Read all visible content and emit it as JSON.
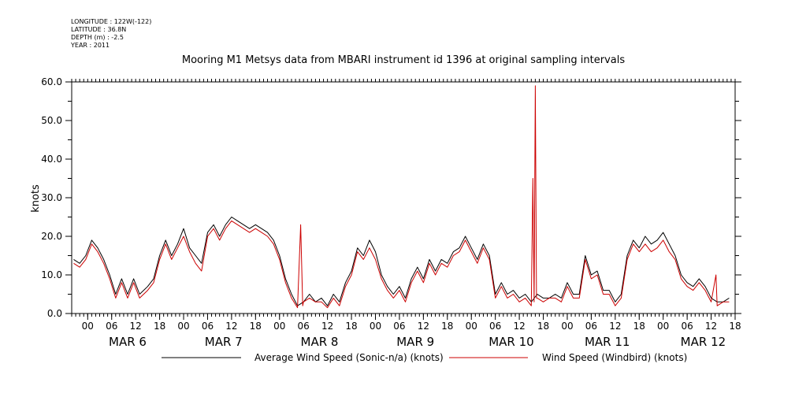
{
  "header": {
    "longitude": "LONGITUDE : 122W(-122)",
    "latitude": "LATITUDE : 36.8N",
    "depth": "DEPTH (m) : -2.5",
    "year": "YEAR : 2011"
  },
  "chart_data": {
    "type": "line",
    "title": "Mooring M1 Metsys data from MBARI instrument id 1396 at original sampling intervals",
    "ylabel": "knots",
    "ylim": [
      0,
      60
    ],
    "yticks": [
      0,
      10,
      20,
      30,
      40,
      50,
      60
    ],
    "xlim_hours": [
      -6,
      160
    ],
    "x_unit": "hours from 2011-03-06 00:00",
    "hour_ticks": [
      {
        "h": -2,
        "label": "00"
      },
      {
        "h": 4,
        "label": "06"
      },
      {
        "h": 10,
        "label": "12"
      },
      {
        "h": 16,
        "label": "18"
      },
      {
        "h": 22,
        "label": "00"
      },
      {
        "h": 28,
        "label": "06"
      },
      {
        "h": 34,
        "label": "12"
      },
      {
        "h": 40,
        "label": "18"
      },
      {
        "h": 46,
        "label": "00"
      },
      {
        "h": 52,
        "label": "06"
      },
      {
        "h": 58,
        "label": "12"
      },
      {
        "h": 64,
        "label": "18"
      },
      {
        "h": 70,
        "label": "00"
      },
      {
        "h": 76,
        "label": "06"
      },
      {
        "h": 82,
        "label": "12"
      },
      {
        "h": 88,
        "label": "18"
      },
      {
        "h": 94,
        "label": "00"
      },
      {
        "h": 100,
        "label": "06"
      },
      {
        "h": 106,
        "label": "12"
      },
      {
        "h": 112,
        "label": "18"
      },
      {
        "h": 118,
        "label": "00"
      },
      {
        "h": 124,
        "label": "06"
      },
      {
        "h": 130,
        "label": "12"
      },
      {
        "h": 136,
        "label": "18"
      },
      {
        "h": 142,
        "label": "00"
      },
      {
        "h": 148,
        "label": "06"
      },
      {
        "h": 154,
        "label": "12"
      },
      {
        "h": 160,
        "label": "18"
      }
    ],
    "day_labels": [
      {
        "h": 8,
        "label": "MAR  6"
      },
      {
        "h": 32,
        "label": "MAR  7"
      },
      {
        "h": 56,
        "label": "MAR  8"
      },
      {
        "h": 80,
        "label": "MAR  9"
      },
      {
        "h": 104,
        "label": "MAR 10"
      },
      {
        "h": 128,
        "label": "MAR 11"
      },
      {
        "h": 152,
        "label": "MAR 12"
      }
    ],
    "series": [
      {
        "name": "Average Wind Speed (Sonic-n/a) (knots)",
        "color": "#000000",
        "points": [
          [
            -5.5,
            14
          ],
          [
            -4,
            13
          ],
          [
            -2.5,
            15
          ],
          [
            -1,
            19
          ],
          [
            0.5,
            17
          ],
          [
            2,
            14
          ],
          [
            3.5,
            10
          ],
          [
            5,
            5
          ],
          [
            6.5,
            9
          ],
          [
            8,
            5
          ],
          [
            9.5,
            9
          ],
          [
            11,
            5
          ],
          [
            13,
            7
          ],
          [
            14.5,
            9
          ],
          [
            16,
            15
          ],
          [
            17.5,
            19
          ],
          [
            19,
            15
          ],
          [
            20.5,
            18
          ],
          [
            22,
            22
          ],
          [
            23.5,
            17
          ],
          [
            25,
            15
          ],
          [
            26.5,
            13
          ],
          [
            28,
            21
          ],
          [
            29.5,
            23
          ],
          [
            31,
            20
          ],
          [
            32.5,
            23
          ],
          [
            34,
            25
          ],
          [
            35.5,
            24
          ],
          [
            37,
            23
          ],
          [
            38.5,
            22
          ],
          [
            40,
            23
          ],
          [
            41.5,
            22
          ],
          [
            43,
            21
          ],
          [
            44.5,
            19
          ],
          [
            46,
            15
          ],
          [
            47.5,
            9
          ],
          [
            49,
            5
          ],
          [
            50.5,
            2
          ],
          [
            52,
            3
          ],
          [
            53.5,
            5
          ],
          [
            55,
            3
          ],
          [
            56.5,
            4
          ],
          [
            58,
            2
          ],
          [
            59.5,
            5
          ],
          [
            61,
            3
          ],
          [
            62.5,
            8
          ],
          [
            64,
            11
          ],
          [
            65.5,
            17
          ],
          [
            67,
            15
          ],
          [
            68.5,
            19
          ],
          [
            70,
            16
          ],
          [
            71.5,
            10
          ],
          [
            73,
            7
          ],
          [
            74.5,
            5
          ],
          [
            76,
            7
          ],
          [
            77.5,
            4
          ],
          [
            79,
            9
          ],
          [
            80.5,
            12
          ],
          [
            82,
            9
          ],
          [
            83.5,
            14
          ],
          [
            85,
            11
          ],
          [
            86.5,
            14
          ],
          [
            88,
            13
          ],
          [
            89.5,
            16
          ],
          [
            91,
            17
          ],
          [
            92.5,
            20
          ],
          [
            94,
            17
          ],
          [
            95.5,
            14
          ],
          [
            97,
            18
          ],
          [
            98.5,
            15
          ],
          [
            100,
            5
          ],
          [
            101.5,
            8
          ],
          [
            103,
            5
          ],
          [
            104.5,
            6
          ],
          [
            106,
            4
          ],
          [
            107.5,
            5
          ],
          [
            109,
            3
          ],
          [
            110.5,
            5
          ],
          [
            112,
            4
          ],
          [
            113.5,
            4
          ],
          [
            115,
            5
          ],
          [
            116.5,
            4
          ],
          [
            118,
            8
          ],
          [
            119.5,
            5
          ],
          [
            121,
            5
          ],
          [
            122.5,
            15
          ],
          [
            124,
            10
          ],
          [
            125.5,
            11
          ],
          [
            127,
            6
          ],
          [
            128.5,
            6
          ],
          [
            130,
            3
          ],
          [
            131.5,
            5
          ],
          [
            133,
            15
          ],
          [
            134.5,
            19
          ],
          [
            136,
            17
          ],
          [
            137.5,
            20
          ],
          [
            139,
            18
          ],
          [
            140.5,
            19
          ],
          [
            142,
            21
          ],
          [
            143.5,
            18
          ],
          [
            145,
            15
          ],
          [
            146.5,
            10
          ],
          [
            148,
            8
          ],
          [
            149.5,
            7
          ],
          [
            151,
            9
          ],
          [
            152.5,
            7
          ],
          [
            154,
            4
          ],
          [
            155.5,
            3
          ],
          [
            157,
            3
          ],
          [
            158.5,
            4
          ]
        ]
      },
      {
        "name": "Wind Speed (Windbird) (knots)",
        "color": "#cc0000",
        "points": [
          [
            -5.5,
            13
          ],
          [
            -4,
            12
          ],
          [
            -2.5,
            14
          ],
          [
            -1,
            18
          ],
          [
            0.5,
            16
          ],
          [
            2,
            13
          ],
          [
            3.5,
            9
          ],
          [
            5,
            4
          ],
          [
            6.5,
            8
          ],
          [
            8,
            4
          ],
          [
            9.5,
            8
          ],
          [
            11,
            4
          ],
          [
            13,
            6
          ],
          [
            14.5,
            8
          ],
          [
            16,
            14
          ],
          [
            17.5,
            18
          ],
          [
            19,
            14
          ],
          [
            20.5,
            17
          ],
          [
            22,
            20
          ],
          [
            23.5,
            16
          ],
          [
            25,
            13
          ],
          [
            26.5,
            11
          ],
          [
            28,
            20
          ],
          [
            29.5,
            22
          ],
          [
            31,
            19
          ],
          [
            32.5,
            22
          ],
          [
            34,
            24
          ],
          [
            35.5,
            23
          ],
          [
            37,
            22
          ],
          [
            38.5,
            21
          ],
          [
            40,
            22
          ],
          [
            41.5,
            21
          ],
          [
            43,
            20
          ],
          [
            44.5,
            18
          ],
          [
            46,
            14
          ],
          [
            47.5,
            8
          ],
          [
            49,
            4
          ],
          [
            50.5,
            1.5
          ],
          [
            51.3,
            23
          ],
          [
            51.8,
            2
          ],
          [
            52,
            3
          ],
          [
            53.5,
            4
          ],
          [
            55,
            3
          ],
          [
            56.5,
            3
          ],
          [
            58,
            1.5
          ],
          [
            59.5,
            4
          ],
          [
            61,
            2
          ],
          [
            62.5,
            7
          ],
          [
            64,
            10
          ],
          [
            65.5,
            16
          ],
          [
            67,
            14
          ],
          [
            68.5,
            17
          ],
          [
            70,
            14
          ],
          [
            71.5,
            9
          ],
          [
            73,
            6
          ],
          [
            74.5,
            4
          ],
          [
            76,
            6
          ],
          [
            77.5,
            3
          ],
          [
            79,
            8
          ],
          [
            80.5,
            11
          ],
          [
            82,
            8
          ],
          [
            83.5,
            13
          ],
          [
            85,
            10
          ],
          [
            86.5,
            13
          ],
          [
            88,
            12
          ],
          [
            89.5,
            15
          ],
          [
            91,
            16
          ],
          [
            92.5,
            19
          ],
          [
            94,
            16
          ],
          [
            95.5,
            13
          ],
          [
            97,
            17
          ],
          [
            98.5,
            14
          ],
          [
            100,
            4
          ],
          [
            101.5,
            7
          ],
          [
            103,
            4
          ],
          [
            104.5,
            5
          ],
          [
            106,
            3
          ],
          [
            107.5,
            4
          ],
          [
            109,
            2
          ],
          [
            109.4,
            35
          ],
          [
            109.7,
            3
          ],
          [
            110,
            59
          ],
          [
            110.3,
            4
          ],
          [
            110.5,
            4
          ],
          [
            112,
            3
          ],
          [
            113.5,
            4
          ],
          [
            115,
            4
          ],
          [
            116.5,
            3
          ],
          [
            118,
            7
          ],
          [
            119.5,
            4
          ],
          [
            121,
            4
          ],
          [
            122.5,
            14
          ],
          [
            124,
            9
          ],
          [
            125.5,
            10
          ],
          [
            127,
            5
          ],
          [
            128.5,
            5
          ],
          [
            130,
            2
          ],
          [
            131.5,
            4
          ],
          [
            133,
            14
          ],
          [
            134.5,
            18
          ],
          [
            136,
            16
          ],
          [
            137.5,
            18
          ],
          [
            139,
            16
          ],
          [
            140.5,
            17
          ],
          [
            142,
            19
          ],
          [
            143.5,
            16
          ],
          [
            145,
            14
          ],
          [
            146.5,
            9
          ],
          [
            148,
            7
          ],
          [
            149.5,
            6
          ],
          [
            151,
            8
          ],
          [
            152.5,
            6
          ],
          [
            154,
            3
          ],
          [
            155.2,
            10
          ],
          [
            155.5,
            2
          ],
          [
            157,
            3
          ],
          [
            158.5,
            3
          ]
        ]
      }
    ]
  }
}
